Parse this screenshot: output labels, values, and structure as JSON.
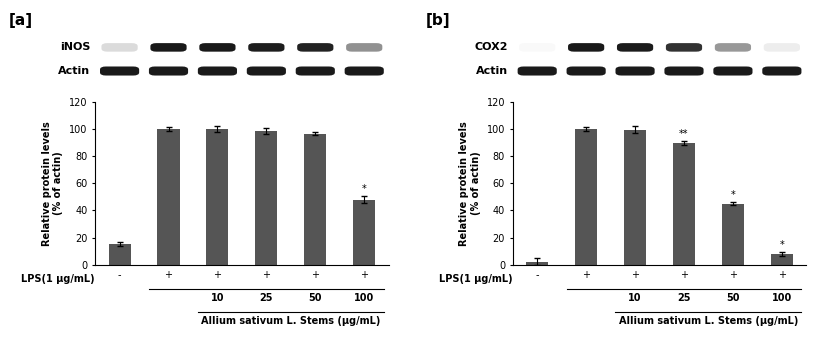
{
  "chart_data": [
    {
      "type": "bar",
      "title": "[a]",
      "annotations": [
        "iNOS",
        "Actin"
      ],
      "categories": [
        "-",
        "+",
        "+",
        "+",
        "+",
        "+"
      ],
      "concentrations": [
        null,
        null,
        "10",
        "25",
        "50",
        "100"
      ],
      "row_label": "LPS(1 μg/mL)",
      "x_label": "Allium sativum L. Stems (μg/mL)",
      "y_label": "Relative protein levels\n(% of actin)",
      "values": [
        15.5,
        100,
        100,
        98.5,
        96.5,
        48
      ],
      "errors": [
        1.5,
        1.5,
        2,
        2,
        1,
        2.5
      ],
      "significance": [
        null,
        null,
        null,
        null,
        null,
        "*"
      ],
      "color": "#555555",
      "ylim": [
        0,
        120
      ],
      "yticks": [
        0,
        20,
        40,
        60,
        80,
        100,
        120
      ],
      "grid": false
    },
    {
      "type": "bar",
      "title": "[b]",
      "annotations": [
        "COX2",
        "Actin"
      ],
      "categories": [
        "-",
        "+",
        "+",
        "+",
        "+",
        "+"
      ],
      "concentrations": [
        null,
        null,
        "10",
        "25",
        "50",
        "100"
      ],
      "row_label": "LPS(1 μg/mL)",
      "x_label": "Allium sativum L. Stems (μg/mL)",
      "y_label": "Relative protein levels\n(% of actin)",
      "values": [
        2.5,
        100,
        99.5,
        89.5,
        45,
        8
      ],
      "errors": [
        2.5,
        1.5,
        2.5,
        1.5,
        1,
        1.5
      ],
      "significance": [
        null,
        null,
        null,
        "**",
        "*",
        "*"
      ],
      "color": "#555555",
      "ylim": [
        0,
        120
      ],
      "yticks": [
        0,
        20,
        40,
        60,
        80,
        100,
        120
      ],
      "grid": false
    }
  ]
}
